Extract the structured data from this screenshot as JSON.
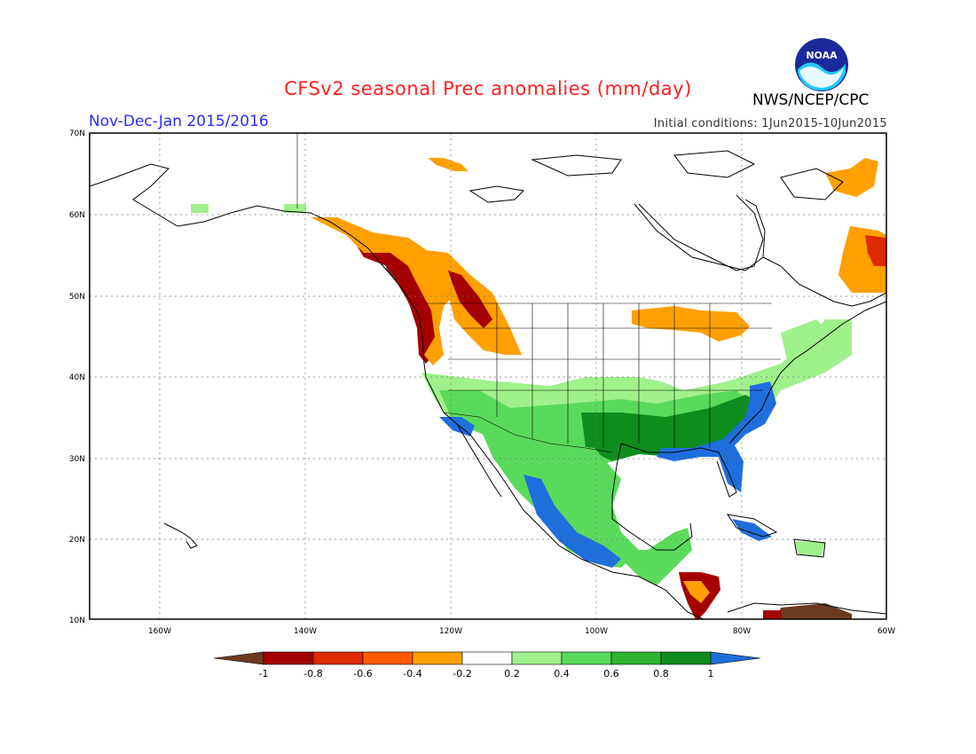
{
  "header": {
    "title": "CFSv2 seasonal Prec anomalies (mm/day)",
    "period": "Nov-Dec-Jan 2015/2016",
    "initial_conditions": "Initial conditions: 1Jun2015-10Jun2015",
    "agency": "NWS/NCEP/CPC",
    "logo_text": "NOAA"
  },
  "axes": {
    "lat_labels": [
      "70N",
      "60N",
      "50N",
      "40N",
      "30N",
      "20N",
      "10N"
    ],
    "lon_labels": [
      "160W",
      "140W",
      "120W",
      "100W",
      "80W",
      "60W"
    ]
  },
  "colorbar": {
    "labels": [
      "-1",
      "-0.8",
      "-0.6",
      "-0.4",
      "-0.2",
      "0.2",
      "0.4",
      "0.6",
      "0.8",
      "1"
    ],
    "colors": [
      "#6b3a1f",
      "#a50000",
      "#dd2a00",
      "#ff5a00",
      "#ffa000",
      "#ffffff",
      "#a0f08c",
      "#5ada5a",
      "#2eb42e",
      "#0f8c1e",
      "#1e6edc"
    ]
  },
  "colors": {
    "brown": "#6b3a1f",
    "darkred": "#a50000",
    "red": "#dd2a00",
    "orangered": "#ff5a00",
    "orange": "#ffa000",
    "lightgreen": "#a0f08c",
    "green": "#5ada5a",
    "midgreen": "#2eb42e",
    "darkgreen": "#0f8c1e",
    "blue": "#1e6edc"
  }
}
